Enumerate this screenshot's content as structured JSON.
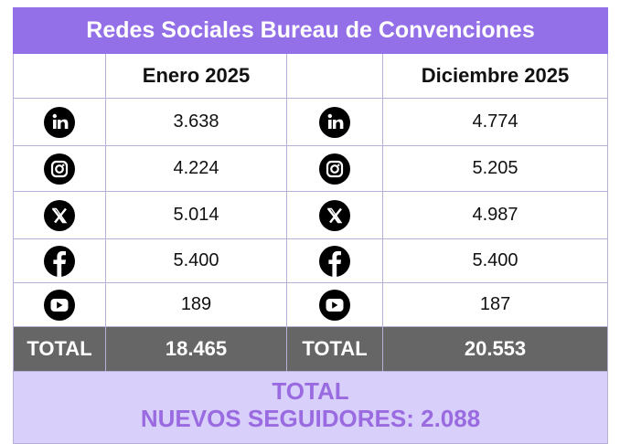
{
  "header": {
    "title": "Redes Sociales Bureau de Convenciones"
  },
  "table": {
    "columns": [
      "Enero 2025",
      "Diciembre 2025"
    ],
    "rows": [
      [
        "3.638",
        "4.774"
      ],
      [
        "4.224",
        "5.205"
      ],
      [
        "5.014",
        "4.987"
      ],
      [
        "5.400",
        "5.400"
      ],
      [
        "189",
        "187"
      ]
    ],
    "total_label": "TOTAL",
    "totals": [
      "18.465",
      "20.553"
    ]
  },
  "footer": {
    "line1": "TOTAL",
    "line2": "NUEVOS SEGUIDORES: 2.088"
  }
}
